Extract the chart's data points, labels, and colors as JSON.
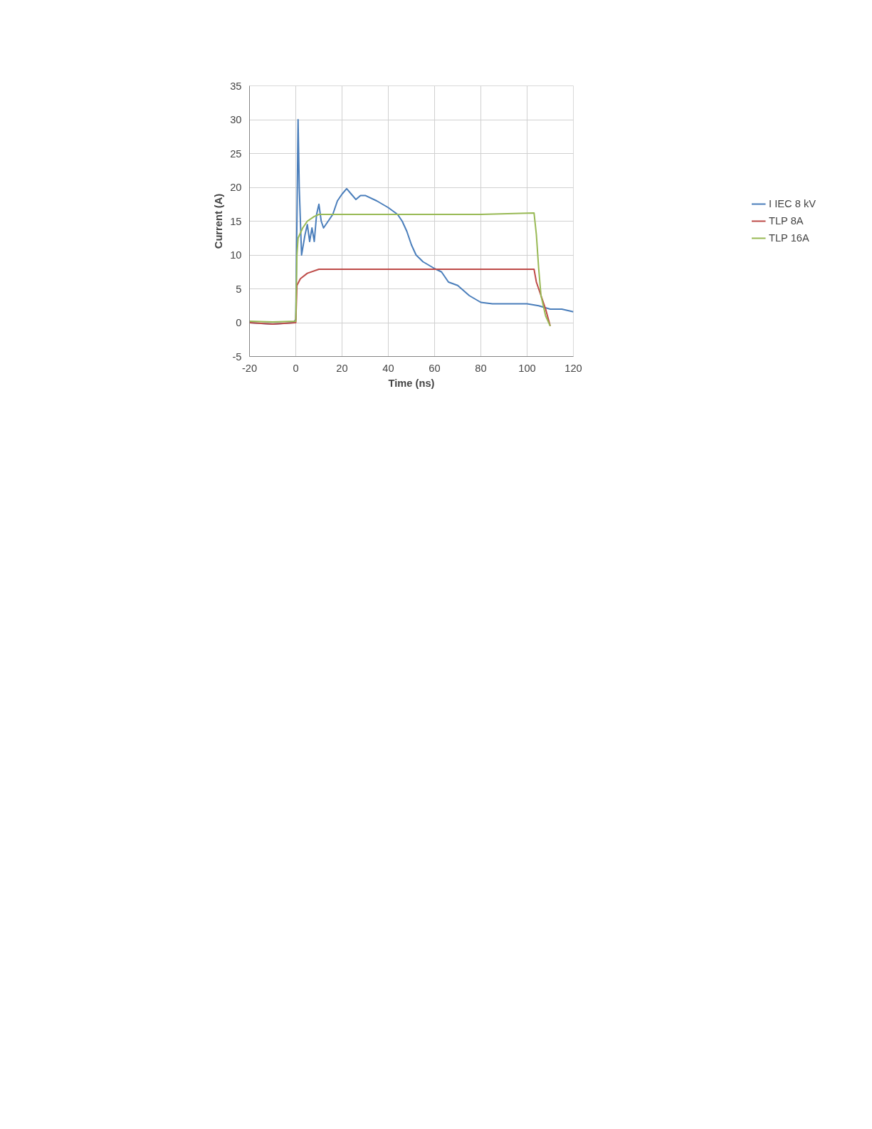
{
  "chart_data": {
    "type": "line",
    "xlabel": "Time (ns)",
    "ylabel": "Current (A)",
    "xlim": [
      -20,
      120
    ],
    "ylim": [
      -5,
      35
    ],
    "xticks": [
      -20,
      0,
      20,
      40,
      60,
      80,
      100,
      120
    ],
    "yticks": [
      -5,
      0,
      5,
      10,
      15,
      20,
      25,
      30,
      35
    ],
    "grid": true,
    "legend": "right",
    "line_style": "solid",
    "marker": "none",
    "series": [
      {
        "name": "I IEC 8 kV",
        "color": "#4a7ebb",
        "x": [
          -20,
          -10,
          -1,
          0,
          0.5,
          1,
          1.5,
          2.5,
          4,
          5,
          6,
          7,
          8,
          9,
          10,
          11,
          12,
          14,
          16,
          18,
          20,
          22,
          24,
          26,
          28,
          30,
          35,
          40,
          44,
          46,
          48,
          50,
          52,
          55,
          60,
          63,
          66,
          70,
          75,
          80,
          85,
          90,
          100,
          105,
          110,
          115,
          120
        ],
        "values": [
          0,
          -0.2,
          0,
          0.5,
          15,
          30,
          20,
          10,
          13,
          14.5,
          12,
          14,
          12,
          16,
          17.5,
          15,
          14,
          15,
          16,
          18,
          19,
          19.8,
          19,
          18.2,
          18.8,
          18.8,
          18,
          17,
          16,
          15,
          13.5,
          11.5,
          10,
          9,
          8,
          7.5,
          6,
          5.5,
          4,
          3,
          2.8,
          2.8,
          2.8,
          2.5,
          2,
          2,
          1.6
        ]
      },
      {
        "name": "TLP 8A",
        "color": "#be4b48",
        "x": [
          -20,
          -10,
          0,
          0.5,
          2,
          5,
          10,
          20,
          40,
          60,
          80,
          103,
          104,
          106,
          108,
          110
        ],
        "values": [
          0,
          -0.2,
          0,
          5.5,
          6.5,
          7.3,
          7.9,
          7.9,
          7.9,
          7.9,
          7.9,
          7.9,
          6,
          4,
          2,
          -0.5
        ]
      },
      {
        "name": "TLP 16A",
        "color": "#98b954",
        "x": [
          -20,
          -10,
          0,
          0.5,
          1,
          3,
          5,
          8,
          10,
          20,
          40,
          60,
          80,
          103,
          104,
          105,
          106,
          108,
          110
        ],
        "values": [
          0.2,
          0.1,
          0.2,
          10,
          12.5,
          14,
          15,
          15.7,
          16,
          16,
          16,
          16,
          16,
          16.2,
          13,
          8,
          4,
          1,
          -0.5
        ]
      }
    ]
  }
}
